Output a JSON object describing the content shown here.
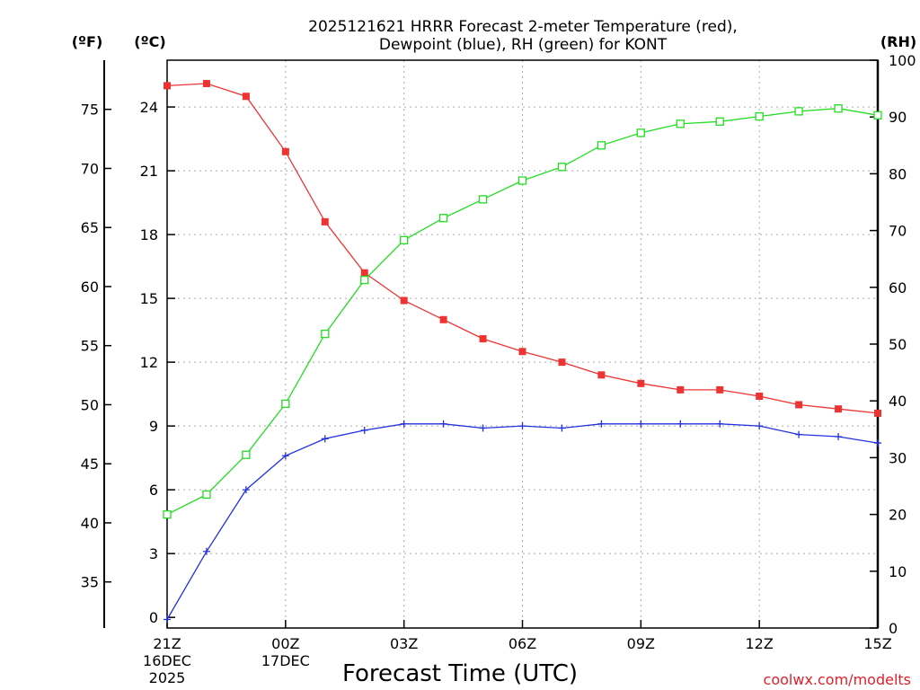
{
  "chart_data": {
    "type": "line",
    "title_lines": [
      "2025121621 HRRR Forecast 2-meter Temperature (red),",
      "Dewpoint (blue), RH (green) for KONT"
    ],
    "xlabel": "Forecast Time (UTC)",
    "credit": "coolwx.com/modelts",
    "unit_labels": {
      "fahrenheit": "(ºF)",
      "celsius": "(ºC)",
      "rh": "(RH)"
    },
    "x_range": [
      0,
      18
    ],
    "celsius_range": [
      -0.5,
      26.2
    ],
    "rh_range": [
      0,
      100
    ],
    "x_ticks": [
      {
        "x": 0,
        "lines": [
          "21Z",
          "16DEC",
          "2025"
        ]
      },
      {
        "x": 3,
        "lines": [
          "00Z",
          "17DEC"
        ]
      },
      {
        "x": 6,
        "lines": [
          "03Z"
        ]
      },
      {
        "x": 9,
        "lines": [
          "06Z"
        ]
      },
      {
        "x": 12,
        "lines": [
          "09Z"
        ]
      },
      {
        "x": 15,
        "lines": [
          "12Z"
        ]
      },
      {
        "x": 18,
        "lines": [
          "15Z"
        ]
      }
    ],
    "celsius_ticks": [
      0,
      3,
      6,
      9,
      12,
      15,
      18,
      21,
      24
    ],
    "fahrenheit_ticks": [
      35,
      40,
      45,
      50,
      55,
      60,
      65,
      70,
      75
    ],
    "rh_ticks": [
      0,
      10,
      20,
      30,
      40,
      50,
      60,
      70,
      80,
      90,
      100
    ],
    "series": [
      {
        "name": "2-meter Temperature",
        "units": "C",
        "color": "#ee3333",
        "marker": "filled-square",
        "x": [
          0,
          1,
          2,
          3,
          4,
          5,
          6,
          7,
          8,
          9,
          10,
          11,
          12,
          13,
          14,
          15,
          16,
          17,
          18
        ],
        "values": [
          25.0,
          25.1,
          24.5,
          21.9,
          18.6,
          16.2,
          14.9,
          14.0,
          13.1,
          12.5,
          12.0,
          11.4,
          11.0,
          10.7,
          10.7,
          10.4,
          10.0,
          9.8,
          9.6
        ]
      },
      {
        "name": "Dewpoint",
        "units": "C",
        "color": "#2233dd",
        "marker": "plus",
        "x": [
          0,
          1,
          2,
          3,
          4,
          5,
          6,
          7,
          8,
          9,
          10,
          11,
          12,
          13,
          14,
          15,
          16,
          17,
          18
        ],
        "values": [
          -0.1,
          3.1,
          6.0,
          7.6,
          8.4,
          8.8,
          9.1,
          9.1,
          8.9,
          9.0,
          8.9,
          9.1,
          9.1,
          9.1,
          9.1,
          9.0,
          8.6,
          8.5,
          8.2
        ]
      },
      {
        "name": "Relative Humidity",
        "units": "%",
        "color": "#22dd22",
        "marker": "open-square",
        "x": [
          0,
          1,
          2,
          3,
          4,
          5,
          6,
          7,
          8,
          9,
          10,
          11,
          12,
          13,
          14,
          15,
          16,
          17,
          18
        ],
        "values": [
          20,
          23.5,
          30.5,
          39.5,
          51.8,
          61.3,
          68.3,
          72.2,
          75.5,
          78.8,
          81.2,
          85.0,
          87.2,
          88.8,
          89.2,
          90.1,
          91.0,
          91.5,
          90.3
        ]
      }
    ]
  }
}
